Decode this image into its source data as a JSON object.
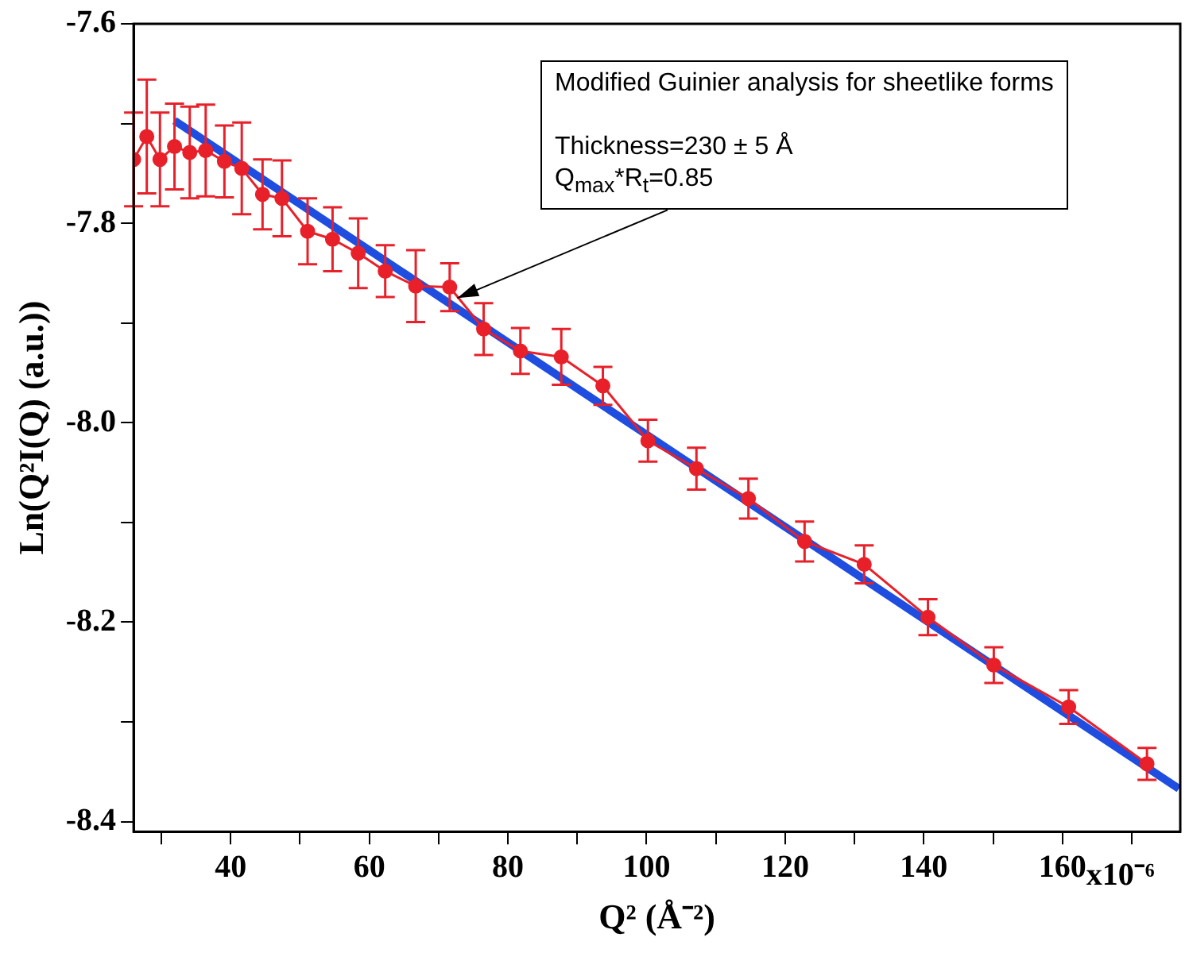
{
  "chart_data": {
    "type": "line",
    "xlabel": "Q² (Å⁻²)",
    "ylabel": "Ln(Q²I(Q) (a.u.))",
    "xlim": [
      26,
      177
    ],
    "ylim": [
      -8.41,
      -7.6
    ],
    "xticks": [
      {
        "value": 30,
        "label": null
      },
      40,
      {
        "value": 50,
        "label": null
      },
      60,
      {
        "value": 70,
        "label": null
      },
      80,
      {
        "value": 90,
        "label": null
      },
      100,
      {
        "value": 110,
        "label": null
      },
      120,
      {
        "value": 130,
        "label": null
      },
      140,
      {
        "value": 150,
        "label": null
      },
      160,
      {
        "value": 170,
        "label": null
      }
    ],
    "yticks": [
      -7.6,
      {
        "value": -7.7,
        "label": null
      },
      -7.8,
      {
        "value": -7.9,
        "label": null
      },
      {
        "value": -8,
        "label": "-8.0"
      },
      {
        "value": -8.1,
        "label": null
      },
      -8.2,
      {
        "value": -8.3,
        "label": null
      },
      -8.4
    ],
    "grid": false,
    "legend": false,
    "series": [
      {
        "color": "#e8202a",
        "marker": "circle",
        "x": [
          26.0,
          27.9,
          29.8,
          31.9,
          34.1,
          36.4,
          39.1,
          41.6,
          44.6,
          47.4,
          51.1,
          54.7,
          58.4,
          62.3,
          66.7,
          71.6,
          76.5,
          81.8,
          87.7,
          93.7,
          100.2,
          107.2,
          114.7,
          122.8,
          131.4,
          140.6,
          150.1,
          160.9,
          172.2
        ],
        "values": [
          -7.736,
          -7.713,
          -7.736,
          -7.723,
          -7.729,
          -7.727,
          -7.738,
          -7.745,
          -7.771,
          -7.775,
          -7.808,
          -7.816,
          -7.83,
          -7.848,
          -7.863,
          -7.864,
          -7.906,
          -7.928,
          -7.934,
          -7.963,
          -8.018,
          -8.046,
          -8.076,
          -8.119,
          -8.142,
          -8.195,
          -8.243,
          -8.285,
          -8.342
        ],
        "errors": [
          0.047,
          0.057,
          0.047,
          0.043,
          0.046,
          0.046,
          0.036,
          0.046,
          0.035,
          0.038,
          0.033,
          0.032,
          0.035,
          0.026,
          0.036,
          0.024,
          0.026,
          0.023,
          0.028,
          0.019,
          0.021,
          0.021,
          0.02,
          0.02,
          0.019,
          0.018,
          0.018,
          0.017,
          0.016
        ]
      },
      {
        "color": "#1f4de0",
        "marker": "none",
        "x": [
          31.9,
          176.8
        ],
        "values": [
          -7.697,
          -8.367
        ]
      }
    ],
    "annotations": [
      "Modified Guinier analysis for sheetlike forms",
      "Thickness=230 ± 5 Å",
      {
        "text": "Q$_{max}$*R$_{t}$=0.85",
        "x": 72.7,
        "y": -7.875
      },
      "x10⁻⁶"
    ]
  }
}
